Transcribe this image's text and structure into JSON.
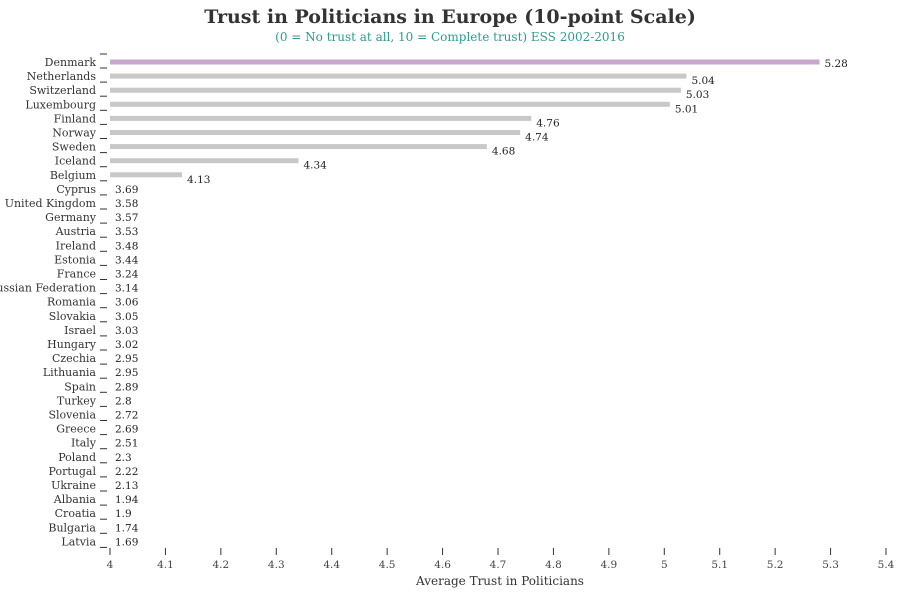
{
  "chart_data": {
    "type": "bar",
    "orientation": "horizontal",
    "title": "Trust in Politicians in Europe (10-point Scale)",
    "subtitle": "(0 = No trust at all, 10 = Complete trust) ESS 2002-2016",
    "xlabel": "Average Trust in Politicians",
    "ylabel": "",
    "xlim": [
      4,
      5.4
    ],
    "xticks": [
      "4",
      "4.1",
      "4.2",
      "4.3",
      "4.4",
      "4.5",
      "4.6",
      "4.7",
      "4.8",
      "4.9",
      "5",
      "5.1",
      "5.2",
      "5.3",
      "5.4"
    ],
    "categories": [
      "Denmark",
      "Netherlands",
      "Switzerland",
      "Luxembourg",
      "Finland",
      "Norway",
      "Sweden",
      "Iceland",
      "Belgium",
      "Cyprus",
      "United Kingdom",
      "Germany",
      "Austria",
      "Ireland",
      "Estonia",
      "France",
      "Russian Federation",
      "Romania",
      "Slovakia",
      "Israel",
      "Hungary",
      "Czechia",
      "Lithuania",
      "Spain",
      "Turkey",
      "Slovenia",
      "Greece",
      "Italy",
      "Poland",
      "Portugal",
      "Ukraine",
      "Albania",
      "Croatia",
      "Bulgaria",
      "Latvia"
    ],
    "values": [
      5.28,
      5.04,
      5.03,
      5.01,
      4.76,
      4.74,
      4.68,
      4.34,
      4.13,
      3.69,
      3.58,
      3.57,
      3.53,
      3.48,
      3.44,
      3.24,
      3.14,
      3.06,
      3.05,
      3.03,
      3.02,
      2.95,
      2.95,
      2.89,
      2.8,
      2.72,
      2.69,
      2.51,
      2.3,
      2.22,
      2.13,
      1.94,
      1.9,
      1.74,
      1.69
    ],
    "value_labels": [
      "5.28",
      "5.04",
      "5.03",
      "5.01",
      "4.76",
      "4.74",
      "4.68",
      "4.34",
      "4.13",
      "3.69",
      "3.58",
      "3.57",
      "3.53",
      "3.48",
      "3.44",
      "3.24",
      "3.14",
      "3.06",
      "3.05",
      "3.03",
      "3.02",
      "2.95",
      "2.95",
      "2.89",
      "2.8",
      "2.72",
      "2.69",
      "2.51",
      "2.3",
      "2.22",
      "2.13",
      "1.94",
      "1.9",
      "1.74",
      "1.69"
    ],
    "highlight_category": "Denmark",
    "colors": {
      "bar": "#c8c8c8",
      "highlight": "#c9a6cc",
      "subtitle": "#2a9d8f"
    },
    "grid": false,
    "legend": "none"
  }
}
